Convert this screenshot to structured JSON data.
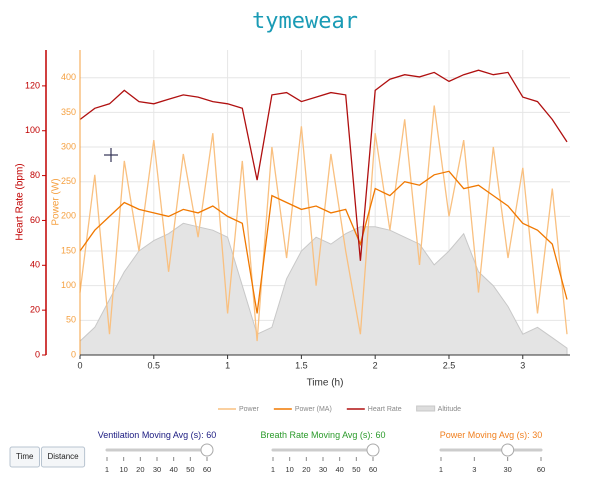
{
  "title": "tymewear",
  "chart_data": {
    "type": "line",
    "xlabel": "Time (h)",
    "ylabel": "Power (W)",
    "y2label": "Heart Rate (bpm)",
    "x": [
      0,
      0.1,
      0.2,
      0.3,
      0.4,
      0.5,
      0.6,
      0.7,
      0.8,
      0.9,
      1.0,
      1.1,
      1.2,
      1.3,
      1.4,
      1.5,
      1.6,
      1.7,
      1.8,
      1.9,
      2.0,
      2.1,
      2.2,
      2.3,
      2.4,
      2.5,
      2.6,
      2.7,
      2.8,
      2.9,
      3.0,
      3.1,
      3.2,
      3.3
    ],
    "xlim": [
      0,
      3.32
    ],
    "xticks": [
      0,
      0.5,
      1,
      1.5,
      2,
      2.5,
      3
    ],
    "ylim": [
      0,
      440
    ],
    "yticks": [
      0,
      50,
      100,
      150,
      200,
      250,
      300,
      350,
      400
    ],
    "ycolor": "#f5a040",
    "y2lim": [
      0,
      136
    ],
    "y2ticks": [
      0,
      20,
      40,
      60,
      80,
      100,
      120
    ],
    "y2color": "#c00000",
    "grid": true,
    "series": [
      {
        "name": "Altitude",
        "color": "#c8c8c8",
        "style": "area",
        "values": [
          20,
          40,
          80,
          120,
          150,
          165,
          175,
          190,
          185,
          180,
          170,
          100,
          30,
          40,
          110,
          150,
          170,
          160,
          175,
          185,
          185,
          180,
          170,
          160,
          130,
          150,
          175,
          120,
          100,
          70,
          30,
          40,
          25,
          10
        ]
      },
      {
        "name": "Power",
        "color": "#f9c080",
        "values": [
          90,
          260,
          30,
          280,
          150,
          310,
          120,
          290,
          170,
          320,
          60,
          280,
          20,
          300,
          140,
          330,
          100,
          290,
          150,
          30,
          320,
          180,
          340,
          130,
          360,
          200,
          310,
          90,
          300,
          140,
          270,
          60,
          240,
          30
        ]
      },
      {
        "name": "Power (MA)",
        "color": "#f07800",
        "values": [
          150,
          180,
          200,
          220,
          210,
          205,
          200,
          210,
          205,
          215,
          200,
          190,
          60,
          230,
          220,
          210,
          215,
          205,
          210,
          160,
          240,
          230,
          250,
          245,
          260,
          265,
          240,
          245,
          230,
          215,
          190,
          180,
          160,
          80
        ]
      },
      {
        "name": "Heart Rate",
        "color": "#b01010",
        "axis": "y2",
        "values": [
          105,
          110,
          112,
          118,
          113,
          112,
          114,
          116,
          115,
          113,
          112,
          110,
          78,
          116,
          117,
          113,
          115,
          117,
          116,
          42,
          118,
          123,
          125,
          124,
          126,
          122,
          125,
          127,
          125,
          126,
          115,
          113,
          105,
          95
        ]
      }
    ],
    "legend_order": [
      "Power",
      "Power (MA)",
      "Heart Rate",
      "Altitude"
    ]
  },
  "controls": {
    "buttons": [
      "Time",
      "Distance"
    ],
    "sliders": [
      {
        "label": "Ventilation Moving Avg (s):",
        "value": 60,
        "color": "#1a1a80",
        "ticks": [
          1,
          10,
          20,
          30,
          40,
          50,
          60
        ]
      },
      {
        "label": "Breath Rate Moving Avg (s):",
        "value": 60,
        "color": "#2a9a2a",
        "ticks": [
          1,
          10,
          20,
          30,
          40,
          50,
          60
        ]
      },
      {
        "label": "Power Moving Avg (s):",
        "value": 30,
        "color": "#f08020",
        "ticks": [
          1,
          3,
          30,
          60
        ]
      }
    ]
  }
}
